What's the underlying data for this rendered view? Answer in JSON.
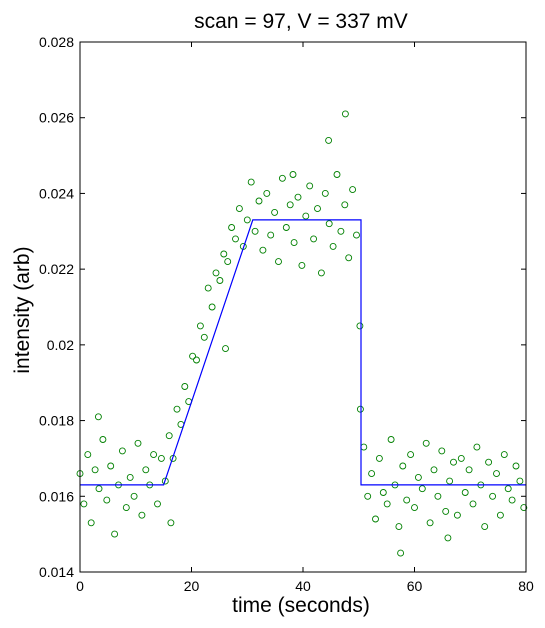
{
  "chart_data": {
    "type": "scatter",
    "title": "scan = 97, V = 337 mV",
    "xlabel": "time (seconds)",
    "ylabel": "intensity (arb)",
    "xlim": [
      0,
      80
    ],
    "ylim": [
      0.014,
      0.028
    ],
    "x_ticks": [
      0,
      20,
      40,
      60,
      80
    ],
    "x_tick_labels": [
      "0",
      "20",
      "40",
      "60",
      "80"
    ],
    "y_ticks": [
      0.014,
      0.016,
      0.018,
      0.02,
      0.022,
      0.024,
      0.026,
      0.028
    ],
    "y_tick_labels": [
      "0.014",
      "0.016",
      "0.018",
      "0.02",
      "0.022",
      "0.024",
      "0.026",
      "0.028"
    ],
    "grid": false,
    "colors": {
      "scatter": "#008000",
      "fit": "#0000ff"
    },
    "series": [
      {
        "type": "scatter",
        "marker": "open-circle",
        "x": [
          0.0,
          0.7,
          1.4,
          2.0,
          2.7,
          3.4,
          4.1,
          4.8,
          5.5,
          6.2,
          6.9,
          7.6,
          8.3,
          9.0,
          9.7,
          10.4,
          11.1,
          11.8,
          12.5,
          13.2,
          13.9,
          14.6,
          15.3,
          16.0,
          16.7,
          17.4,
          18.1,
          18.8,
          19.5,
          20.2,
          20.9,
          21.6,
          22.3,
          23.0,
          23.7,
          24.4,
          25.1,
          25.8,
          26.5,
          27.2,
          27.9,
          28.6,
          29.3,
          30.0,
          30.7,
          31.4,
          32.1,
          32.8,
          33.5,
          34.2,
          34.9,
          35.6,
          36.3,
          37.0,
          37.7,
          38.4,
          39.1,
          39.8,
          40.5,
          41.2,
          41.9,
          42.6,
          43.3,
          44.0,
          44.7,
          45.4,
          46.1,
          46.8,
          47.5,
          48.2,
          48.9,
          49.6,
          50.2,
          50.9,
          51.6,
          52.3,
          53.0,
          53.7,
          54.4,
          55.1,
          55.8,
          56.5,
          57.2,
          57.9,
          58.6,
          59.3,
          60.0,
          60.7,
          61.4,
          62.1,
          62.8,
          63.5,
          64.2,
          64.9,
          65.6,
          66.3,
          67.0,
          67.7,
          68.4,
          69.1,
          69.8,
          70.5,
          71.2,
          71.9,
          72.6,
          73.3,
          74.0,
          74.7,
          75.4,
          76.1,
          76.8,
          77.5,
          78.2,
          78.9,
          79.6,
          3.3,
          16.3,
          26.1,
          38.2,
          44.6,
          47.6,
          50.3,
          57.5,
          66.0
        ],
        "y": [
          0.0166,
          0.0158,
          0.0171,
          0.0153,
          0.0167,
          0.0162,
          0.0175,
          0.0159,
          0.0168,
          0.015,
          0.0163,
          0.0172,
          0.0157,
          0.0165,
          0.016,
          0.0174,
          0.0155,
          0.0167,
          0.0163,
          0.0171,
          0.0158,
          0.017,
          0.0164,
          0.0176,
          0.017,
          0.0183,
          0.0179,
          0.0189,
          0.0185,
          0.0197,
          0.0196,
          0.0205,
          0.0202,
          0.0215,
          0.021,
          0.0219,
          0.0217,
          0.0224,
          0.0222,
          0.0231,
          0.0228,
          0.0236,
          0.0226,
          0.0233,
          0.0243,
          0.023,
          0.0238,
          0.0225,
          0.024,
          0.0229,
          0.0235,
          0.0222,
          0.0244,
          0.0231,
          0.0237,
          0.0227,
          0.0239,
          0.0221,
          0.0234,
          0.0242,
          0.0228,
          0.0236,
          0.0219,
          0.024,
          0.0232,
          0.0226,
          0.0245,
          0.023,
          0.0237,
          0.0223,
          0.0241,
          0.0229,
          0.0205,
          0.0173,
          0.016,
          0.0166,
          0.0154,
          0.017,
          0.0161,
          0.0158,
          0.0175,
          0.0163,
          0.0152,
          0.0168,
          0.0159,
          0.0171,
          0.0157,
          0.0165,
          0.0162,
          0.0174,
          0.0153,
          0.0167,
          0.016,
          0.0172,
          0.0156,
          0.0164,
          0.0169,
          0.0155,
          0.017,
          0.0161,
          0.0167,
          0.0158,
          0.0173,
          0.0163,
          0.0152,
          0.0169,
          0.016,
          0.0166,
          0.0155,
          0.0171,
          0.0162,
          0.0159,
          0.0168,
          0.0164,
          0.0157,
          0.0181,
          0.0153,
          0.0199,
          0.0245,
          0.0254,
          0.0261,
          0.0183,
          0.0145,
          0.0149
        ]
      },
      {
        "type": "line",
        "x": [
          0,
          15,
          31,
          50.4,
          50.4,
          80
        ],
        "y": [
          0.0163,
          0.0163,
          0.0233,
          0.0233,
          0.0163,
          0.0163
        ]
      }
    ]
  }
}
